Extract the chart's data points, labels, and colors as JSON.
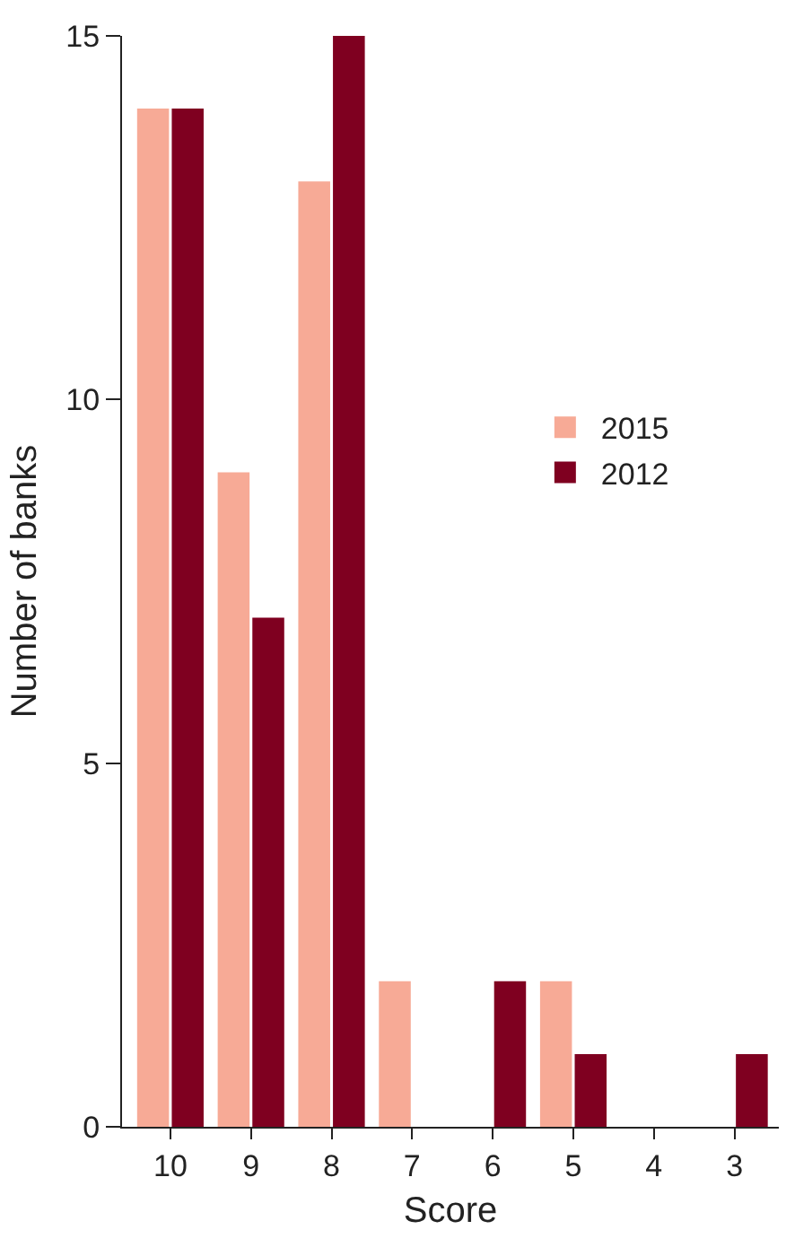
{
  "chart_data": {
    "type": "bar",
    "xlabel": "Score",
    "ylabel": "Number of banks",
    "categories": [
      "10",
      "9",
      "8",
      "7",
      "6",
      "5",
      "4",
      "3"
    ],
    "series": [
      {
        "name": "2015",
        "color": "#f7aa96",
        "values": [
          14,
          9,
          13,
          2,
          0,
          2,
          0,
          0
        ]
      },
      {
        "name": "2012",
        "color": "#7f0020",
        "values": [
          14,
          7,
          15,
          0,
          2,
          1,
          0,
          1
        ]
      }
    ],
    "ylim": [
      0,
      15
    ],
    "yticks": [
      0,
      5,
      10,
      15
    ],
    "legend": "right"
  }
}
